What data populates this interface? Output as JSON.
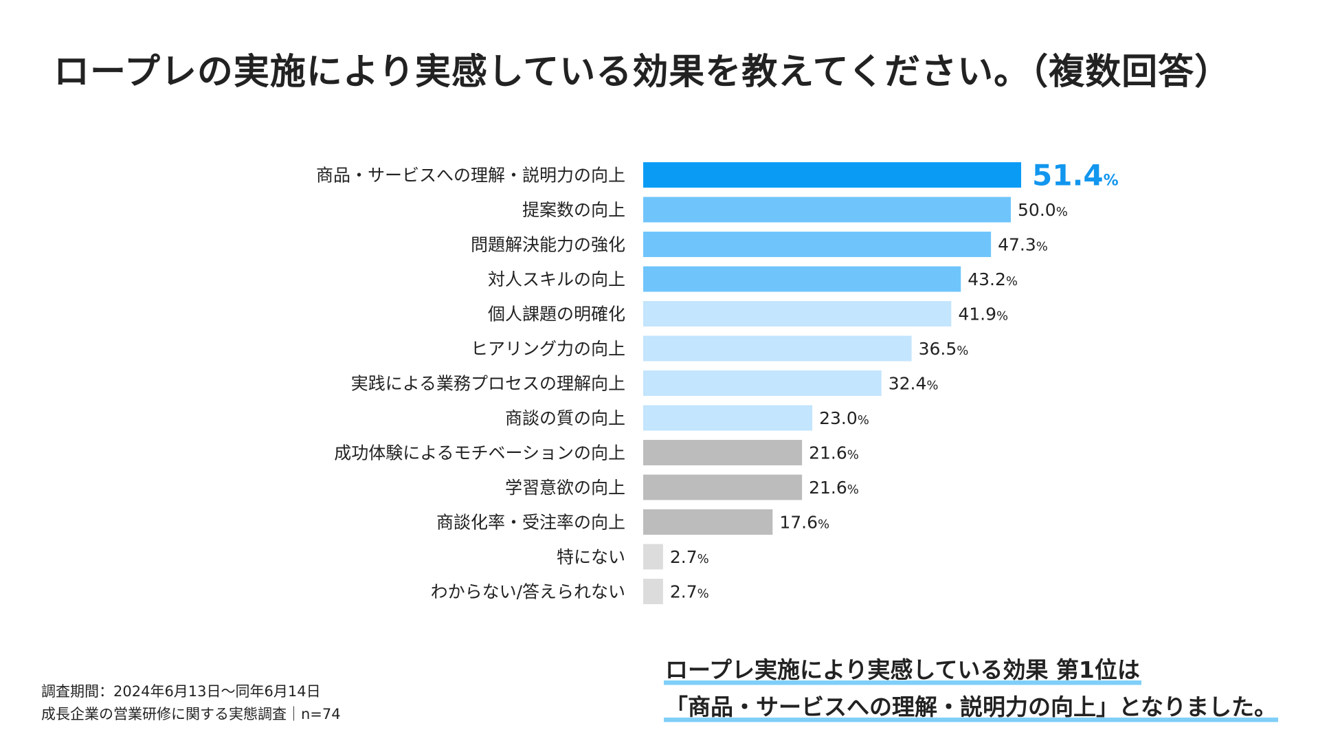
{
  "title": "ロープレの実施により実感している効果を教えてください。（複数回答）",
  "chart_data": {
    "type": "bar",
    "orientation": "horizontal",
    "unit": "%",
    "categories": [
      "商品・サービスへの理解・説明力の向上",
      "提案数の向上",
      "問題解決能力の強化",
      "対人スキルの向上",
      "個人課題の明確化",
      "ヒアリング力の向上",
      "実践による業務プロセスの理解向上",
      "商談の質の向上",
      "成功体験によるモチベーションの向上",
      "学習意欲の向上",
      "商談化率・受注率の向上",
      "特にない",
      "わからない/答えられない"
    ],
    "values": [
      "51.4",
      "50.0",
      "47.3",
      "43.2",
      "41.9",
      "36.5",
      "32.4",
      "23.0",
      "21.6",
      "21.6",
      "17.6",
      "2.7",
      "2.7"
    ],
    "colors": [
      "#0a9cf5",
      "#6fc5fb",
      "#6fc5fb",
      "#6fc5fb",
      "#c3e5fd",
      "#c3e5fd",
      "#c3e5fd",
      "#c3e5fd",
      "#bcbcbc",
      "#bcbcbc",
      "#bcbcbc",
      "#dcdcdc",
      "#dcdcdc"
    ],
    "highlight_color": "#1296ee",
    "xlim": [
      0,
      51.4
    ]
  },
  "footnote": {
    "period": "調査期間：2024年6月13日〜同年6月14日",
    "survey": "成長企業の営業研修に関する実態調査｜n=74"
  },
  "summary": {
    "line1": "ロープレ実施により実感している効果 第1位は",
    "line2": "「商品・サービスへの理解・説明力の向上」となりました。"
  }
}
